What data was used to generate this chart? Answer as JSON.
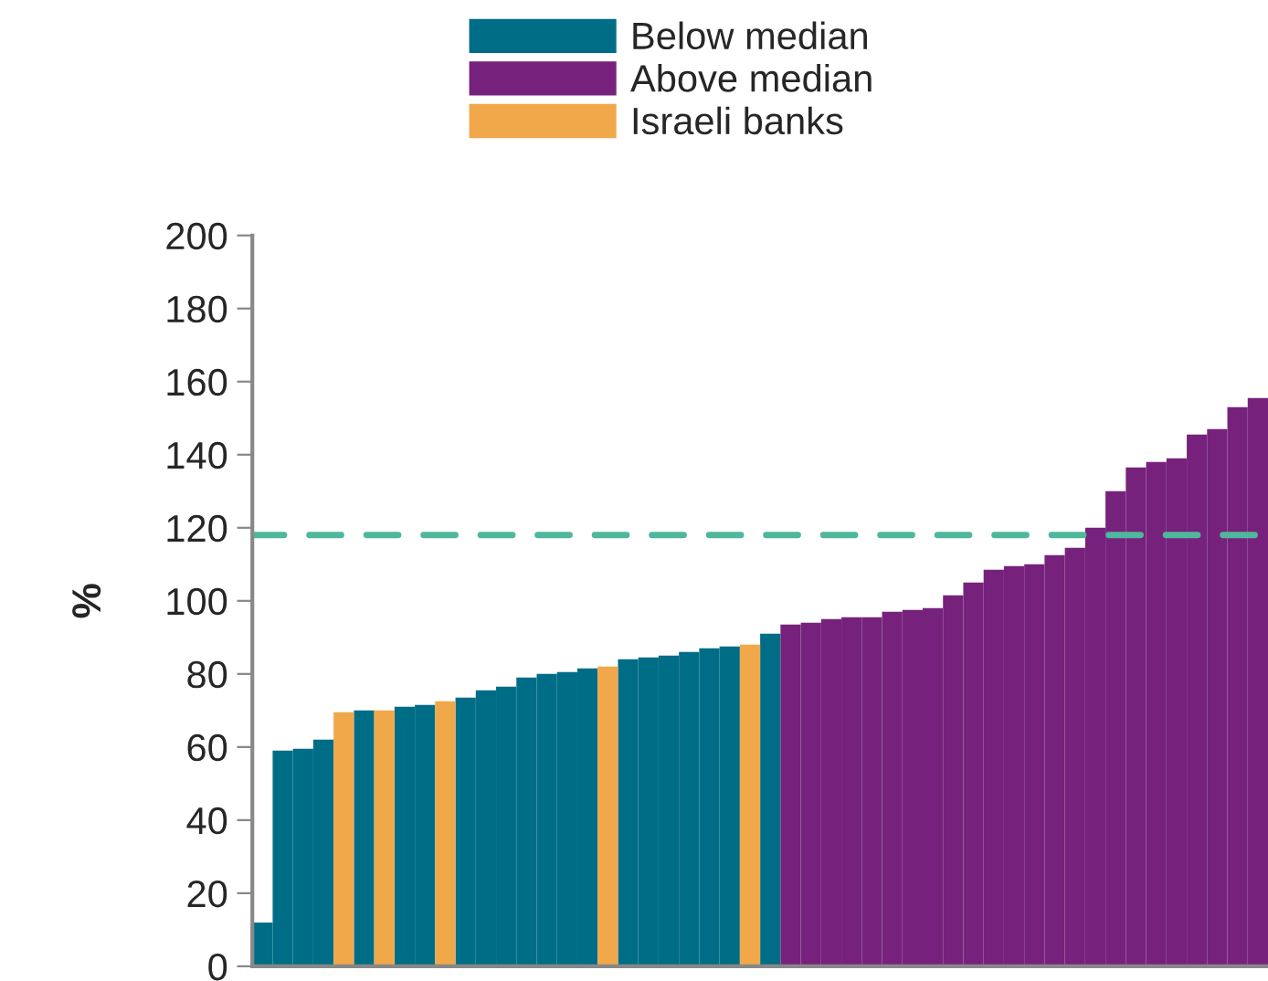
{
  "chart_data": {
    "type": "bar",
    "ylabel": "%",
    "categories": [
      null,
      null,
      null,
      null,
      null,
      null,
      null,
      null,
      null,
      null,
      null,
      null,
      null,
      null,
      null,
      null,
      null,
      null,
      null,
      null,
      null,
      null,
      null,
      null,
      null,
      null,
      null,
      null,
      null,
      null,
      null,
      null,
      null,
      null,
      null,
      null,
      null,
      null,
      null,
      null,
      null,
      null,
      null,
      null,
      null,
      null,
      null,
      null,
      null,
      null
    ],
    "series": [
      {
        "name": "Below median",
        "color": "#006d87",
        "values": [
          12,
          59,
          59.5,
          62,
          null,
          70,
          null,
          71,
          71.5,
          null,
          73.5,
          75.5,
          76.5,
          79,
          80,
          80.5,
          81.5,
          null,
          84,
          84.5,
          85,
          86,
          87,
          87.5,
          null,
          91,
          null,
          null,
          null,
          null,
          null,
          null,
          null,
          null,
          null,
          null,
          null,
          null,
          null,
          null,
          null,
          null,
          null,
          null,
          null,
          null,
          null,
          null,
          null,
          null
        ]
      },
      {
        "name": "Above median",
        "color": "#76227c",
        "values": [
          null,
          null,
          null,
          null,
          null,
          null,
          null,
          null,
          null,
          null,
          null,
          null,
          null,
          null,
          null,
          null,
          null,
          null,
          null,
          null,
          null,
          null,
          null,
          null,
          null,
          null,
          93.5,
          94,
          95,
          95.5,
          95.5,
          97,
          97.5,
          98,
          101.5,
          105,
          108.5,
          109.5,
          110,
          112.5,
          114.5,
          120,
          130,
          136.5,
          138,
          139,
          145.5,
          147,
          153,
          155.5
        ]
      },
      {
        "name": "Israeli banks",
        "color": "#f0a84a",
        "values": [
          null,
          null,
          null,
          null,
          69.5,
          null,
          70,
          null,
          null,
          72.5,
          null,
          null,
          null,
          null,
          null,
          null,
          null,
          82,
          null,
          null,
          null,
          null,
          null,
          null,
          88,
          null,
          null,
          null,
          null,
          null,
          null,
          null,
          null,
          null,
          null,
          null,
          null,
          null,
          null,
          null,
          null,
          null,
          null,
          null,
          null,
          null,
          null,
          null,
          null,
          null
        ]
      }
    ],
    "ylim": [
      0,
      200
    ],
    "yticks": [
      0,
      20,
      40,
      60,
      80,
      100,
      120,
      140,
      160,
      180,
      200
    ],
    "ref_lines": [
      {
        "axis": "y",
        "value": 118,
        "color": "#4fb79c",
        "line_style": "dashed"
      }
    ],
    "legend": "top",
    "grid": false,
    "tick_labels": "y"
  }
}
